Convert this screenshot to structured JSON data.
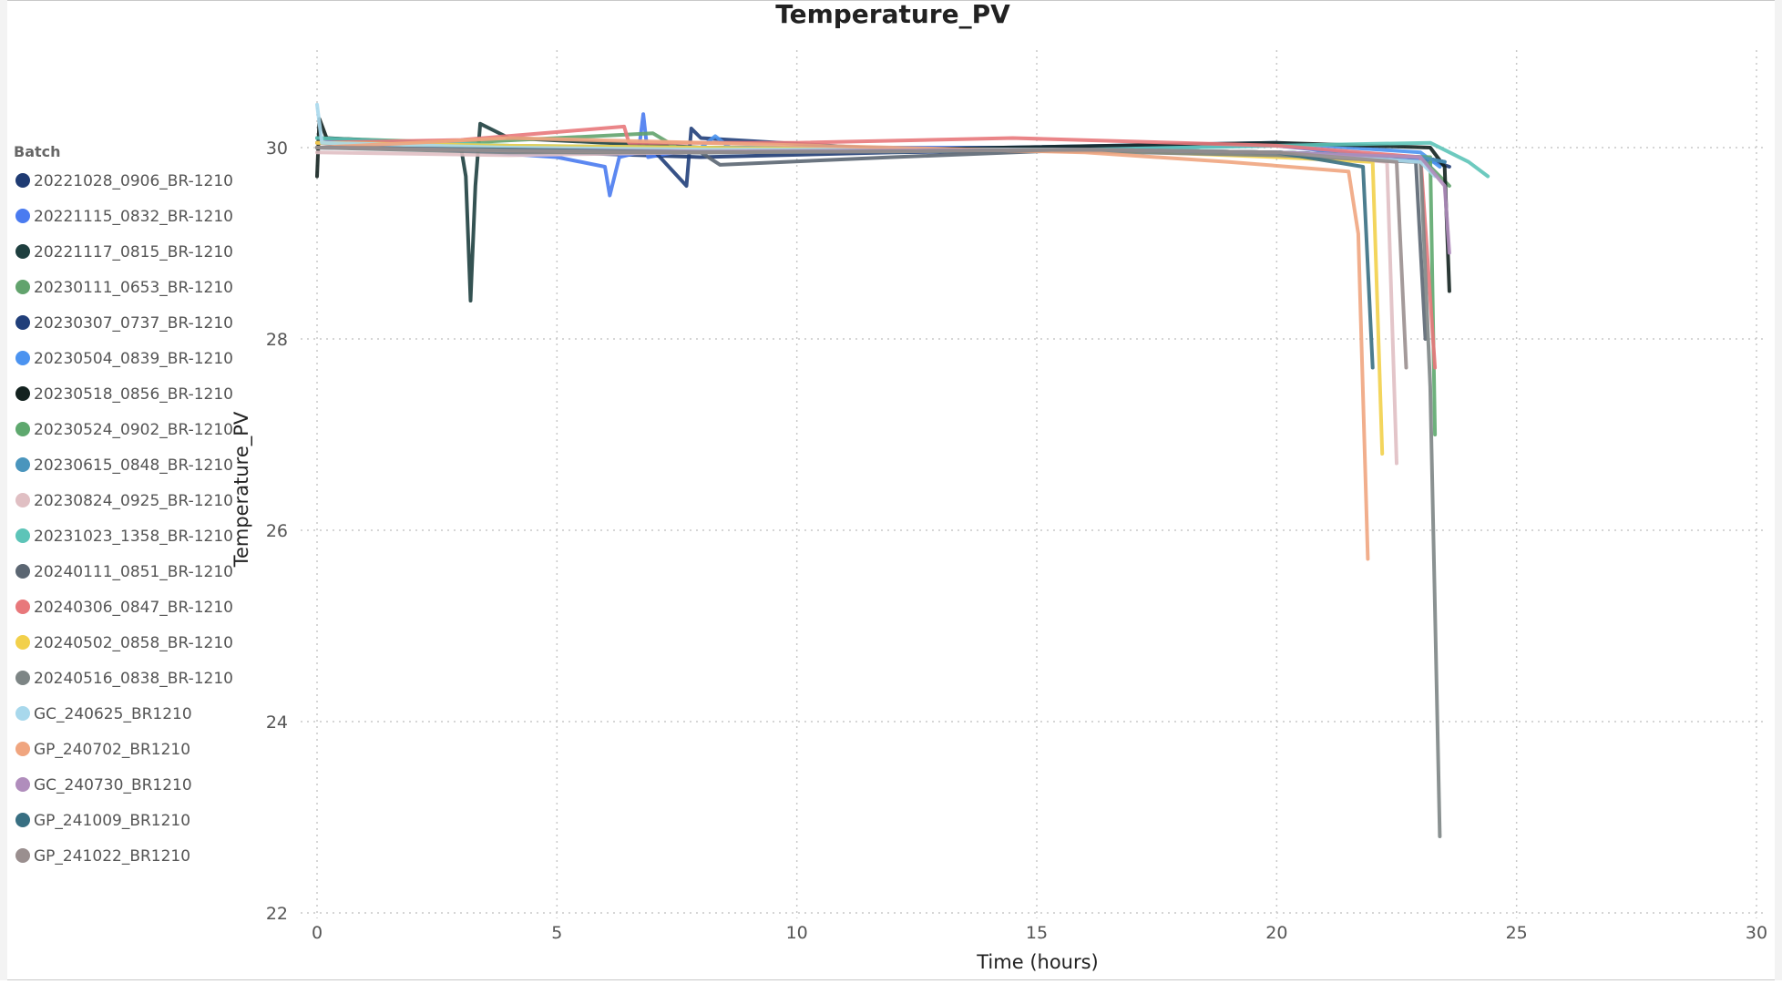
{
  "chart_data": {
    "type": "line",
    "title": "Temperature_PV",
    "xlabel": "Time (hours)",
    "ylabel": "Temperature_PV",
    "xlim": [
      -0.5,
      30.5
    ],
    "ylim": [
      22,
      31
    ],
    "xticks": [
      0,
      5,
      10,
      15,
      20,
      25,
      30
    ],
    "yticks": [
      22,
      24,
      26,
      28,
      30
    ],
    "grid": true,
    "legend": {
      "title": "Batch",
      "placement": "left"
    },
    "series": [
      {
        "name": "20221028_0906_BR-1210",
        "color": "#1f3b73",
        "values": [
          [
            0,
            30.05
          ],
          [
            2,
            30.0
          ],
          [
            5,
            29.95
          ],
          [
            8,
            29.9
          ],
          [
            12,
            29.95
          ],
          [
            16,
            29.98
          ],
          [
            20,
            29.95
          ],
          [
            23,
            29.9
          ],
          [
            23.6,
            29.8
          ]
        ]
      },
      {
        "name": "20221115_0832_BR-1210",
        "color": "#4a7bf0",
        "values": [
          [
            0,
            30.1
          ],
          [
            2,
            30.0
          ],
          [
            5,
            29.9
          ],
          [
            6,
            29.8
          ],
          [
            6.1,
            29.5
          ],
          [
            6.3,
            29.9
          ],
          [
            6.7,
            29.95
          ],
          [
            6.8,
            30.35
          ],
          [
            6.9,
            29.9
          ],
          [
            8,
            30.0
          ],
          [
            12,
            30.0
          ],
          [
            16,
            30.0
          ],
          [
            20,
            30.02
          ],
          [
            23.3,
            29.85
          ]
        ]
      },
      {
        "name": "20221117_0815_BR-1210",
        "color": "#1e3f3f",
        "values": [
          [
            0,
            30.0
          ],
          [
            3.0,
            30.0
          ],
          [
            3.1,
            29.7
          ],
          [
            3.2,
            28.4
          ],
          [
            3.3,
            29.6
          ],
          [
            3.4,
            30.25
          ],
          [
            4,
            30.1
          ],
          [
            8,
            30.0
          ],
          [
            12,
            29.98
          ],
          [
            16,
            29.98
          ],
          [
            20,
            29.95
          ],
          [
            23,
            29.9
          ],
          [
            23.5,
            29.85
          ]
        ]
      },
      {
        "name": "20230111_0653_BR-1210",
        "color": "#62a36d",
        "values": [
          [
            0,
            30.1
          ],
          [
            3,
            30.05
          ],
          [
            7,
            30.15
          ],
          [
            7.5,
            30.0
          ],
          [
            12,
            29.98
          ],
          [
            16,
            29.98
          ],
          [
            20,
            29.95
          ],
          [
            23,
            29.9
          ],
          [
            23.6,
            29.6
          ]
        ]
      },
      {
        "name": "20230307_0737_BR-1210",
        "color": "#213f7a",
        "values": [
          [
            0,
            30.0
          ],
          [
            3,
            30.0
          ],
          [
            7,
            29.98
          ],
          [
            7.7,
            29.6
          ],
          [
            7.8,
            30.2
          ],
          [
            8,
            30.1
          ],
          [
            12,
            29.98
          ],
          [
            20,
            29.95
          ],
          [
            23,
            29.9
          ],
          [
            23.5,
            29.85
          ]
        ]
      },
      {
        "name": "20230504_0839_BR-1210",
        "color": "#4b93f0",
        "values": [
          [
            0,
            30.05
          ],
          [
            4,
            30.0
          ],
          [
            8,
            30.0
          ],
          [
            8.3,
            30.12
          ],
          [
            8.6,
            30.0
          ],
          [
            12,
            29.98
          ],
          [
            20,
            30.05
          ],
          [
            23,
            29.95
          ],
          [
            23.4,
            29.8
          ]
        ]
      },
      {
        "name": "20230518_0856_BR-1210",
        "color": "#13221f",
        "values": [
          [
            0,
            29.7
          ],
          [
            0.05,
            30.3
          ],
          [
            0.2,
            30.1
          ],
          [
            4,
            30.0
          ],
          [
            12,
            29.98
          ],
          [
            20,
            30.05
          ],
          [
            23.2,
            30.0
          ],
          [
            23.5,
            29.8
          ],
          [
            23.6,
            28.5
          ]
        ]
      },
      {
        "name": "20230524_0902_BR-1210",
        "color": "#5ea86e",
        "values": [
          [
            0,
            30.05
          ],
          [
            4,
            30.0
          ],
          [
            8,
            29.98
          ],
          [
            12,
            29.96
          ],
          [
            16,
            29.98
          ],
          [
            20,
            29.95
          ],
          [
            23.2,
            29.9
          ],
          [
            23.3,
            27.0
          ]
        ]
      },
      {
        "name": "20230615_0848_BR-1210",
        "color": "#4a95bd",
        "values": [
          [
            0,
            30.0
          ],
          [
            4,
            29.98
          ],
          [
            8,
            29.95
          ],
          [
            12,
            29.96
          ],
          [
            16,
            29.98
          ],
          [
            20,
            29.95
          ],
          [
            23,
            29.9
          ],
          [
            23.5,
            29.85
          ]
        ]
      },
      {
        "name": "20230824_0925_BR-1210",
        "color": "#e0bfc3",
        "values": [
          [
            0,
            29.95
          ],
          [
            4,
            29.92
          ],
          [
            8,
            29.95
          ],
          [
            12,
            29.98
          ],
          [
            16,
            29.98
          ],
          [
            20,
            29.95
          ],
          [
            22.3,
            29.85
          ],
          [
            22.5,
            26.7
          ]
        ]
      },
      {
        "name": "20231023_1358_BR-1210",
        "color": "#5dc4b8",
        "values": [
          [
            0,
            30.1
          ],
          [
            4,
            30.02
          ],
          [
            8,
            30.0
          ],
          [
            12,
            29.98
          ],
          [
            16,
            29.98
          ],
          [
            20,
            30.02
          ],
          [
            23.2,
            30.05
          ],
          [
            24.0,
            29.85
          ],
          [
            24.4,
            29.7
          ]
        ]
      },
      {
        "name": "20240111_0851_BR-1210",
        "color": "#5b6672",
        "values": [
          [
            0,
            30.05
          ],
          [
            4,
            30.0
          ],
          [
            8,
            29.95
          ],
          [
            8.4,
            29.82
          ],
          [
            12,
            29.9
          ],
          [
            16,
            29.98
          ],
          [
            20,
            29.92
          ],
          [
            22.9,
            29.85
          ],
          [
            23.1,
            28.0
          ]
        ]
      },
      {
        "name": "20240306_0847_BR-1210",
        "color": "#e8787b",
        "values": [
          [
            0,
            30.05
          ],
          [
            3,
            30.08
          ],
          [
            6.4,
            30.22
          ],
          [
            6.5,
            30.05
          ],
          [
            10,
            30.05
          ],
          [
            14.5,
            30.1
          ],
          [
            20,
            30.02
          ],
          [
            23,
            29.9
          ],
          [
            23.3,
            27.7
          ]
        ]
      },
      {
        "name": "20240502_0858_BR-1210",
        "color": "#f2d04b",
        "values": [
          [
            0,
            30.05
          ],
          [
            4,
            30.02
          ],
          [
            8,
            30.0
          ],
          [
            12,
            29.98
          ],
          [
            16,
            29.98
          ],
          [
            20,
            29.9
          ],
          [
            22.0,
            29.85
          ],
          [
            22.2,
            26.8
          ]
        ]
      },
      {
        "name": "20240516_0838_BR-1210",
        "color": "#7d8585",
        "values": [
          [
            0,
            30.0
          ],
          [
            4,
            29.95
          ],
          [
            8,
            29.95
          ],
          [
            12,
            29.98
          ],
          [
            16,
            29.96
          ],
          [
            20,
            29.92
          ],
          [
            23,
            29.85
          ],
          [
            23.2,
            27.5
          ],
          [
            23.4,
            22.8
          ]
        ]
      },
      {
        "name": "GC_240625_BR1210",
        "color": "#a8d8ec",
        "values": [
          [
            0,
            30.45
          ],
          [
            0.1,
            30.05
          ],
          [
            4,
            30.0
          ],
          [
            8,
            29.98
          ],
          [
            12,
            29.98
          ],
          [
            16,
            29.98
          ],
          [
            20,
            29.95
          ],
          [
            23,
            29.85
          ],
          [
            23.3,
            29.7
          ]
        ]
      },
      {
        "name": "GP_240702_BR1210",
        "color": "#f0a57f",
        "values": [
          [
            0,
            30.0
          ],
          [
            4,
            30.1
          ],
          [
            8,
            30.05
          ],
          [
            12,
            30.0
          ],
          [
            16,
            29.95
          ],
          [
            19,
            29.85
          ],
          [
            21.5,
            29.75
          ],
          [
            21.7,
            29.1
          ],
          [
            21.9,
            25.7
          ]
        ]
      },
      {
        "name": "GC_240730_BR1210",
        "color": "#b08dbc",
        "values": [
          [
            0,
            30.0
          ],
          [
            4,
            29.98
          ],
          [
            8,
            29.96
          ],
          [
            12,
            29.97
          ],
          [
            16,
            29.98
          ],
          [
            20,
            29.95
          ],
          [
            23,
            29.9
          ],
          [
            23.5,
            29.6
          ],
          [
            23.6,
            28.9
          ]
        ]
      },
      {
        "name": "GP_241009_BR1210",
        "color": "#386f82",
        "values": [
          [
            0,
            30.0
          ],
          [
            4,
            29.98
          ],
          [
            8,
            29.95
          ],
          [
            12,
            29.96
          ],
          [
            16,
            29.98
          ],
          [
            20,
            29.95
          ],
          [
            21.8,
            29.8
          ],
          [
            22.0,
            27.7
          ]
        ]
      },
      {
        "name": "GP_241022_BR1210",
        "color": "#9a8f8f",
        "values": [
          [
            0,
            30.0
          ],
          [
            4,
            29.97
          ],
          [
            8,
            29.95
          ],
          [
            12,
            29.96
          ],
          [
            16,
            29.98
          ],
          [
            20,
            29.95
          ],
          [
            22.5,
            29.85
          ],
          [
            22.7,
            27.7
          ]
        ]
      }
    ]
  }
}
